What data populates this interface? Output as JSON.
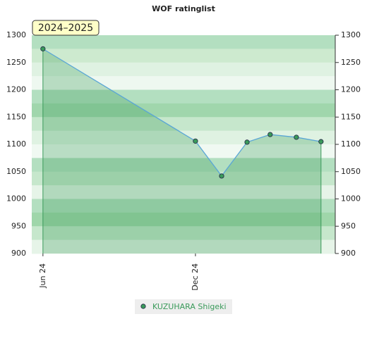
{
  "chart_data": {
    "type": "line",
    "title": "WOF ratinglist",
    "period": "2024–2025",
    "x": [
      0,
      6,
      7.03,
      8.03,
      8.94,
      9.97,
      10.94
    ],
    "xlim": [
      -0.44,
      11.5
    ],
    "xticks": [
      {
        "value": 0,
        "label": "Jun 24"
      },
      {
        "value": 6,
        "label": "Dec 24"
      }
    ],
    "series": [
      {
        "name": "KUZUHARA Shigeki",
        "color": "#3a9a5a",
        "values": [
          1275,
          1106,
          1042,
          1104,
          1118,
          1113,
          1105
        ]
      }
    ],
    "ylim": [
      900,
      1300
    ],
    "yticks": [
      900,
      950,
      1000,
      1050,
      1100,
      1150,
      1200,
      1250,
      1300
    ]
  }
}
